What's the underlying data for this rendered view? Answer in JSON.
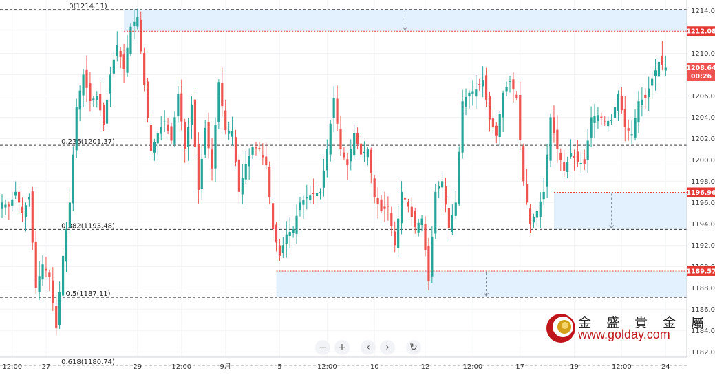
{
  "chart_data": {
    "type": "candlestick",
    "y_axis": {
      "range": [
        1181.5,
        1215.0
      ],
      "ticks": [
        "1182.00",
        "1184.00",
        "1186.00",
        "1188.00",
        "1190.00",
        "1192.00",
        "1194.00",
        "1196.00",
        "1198.00",
        "1200.00",
        "1202.00",
        "1204.00",
        "1206.00",
        "1208.00",
        "1210.00",
        "1212.00",
        "1214.00"
      ]
    },
    "x_axis": {
      "ticks": [
        {
          "label": "12:00",
          "bar": 3
        },
        {
          "label": "27",
          "bar": 13
        },
        {
          "label": "29",
          "bar": 40
        },
        {
          "label": "12:00",
          "bar": 53
        },
        {
          "label": "9月",
          "bar": 66
        },
        {
          "label": "5",
          "bar": 82
        },
        {
          "label": "12:00",
          "bar": 96
        },
        {
          "label": "10",
          "bar": 110
        },
        {
          "label": "12",
          "bar": 125
        },
        {
          "label": "12:00",
          "bar": 139
        },
        {
          "label": "17",
          "bar": 153
        },
        {
          "label": "19",
          "bar": 169
        },
        {
          "label": "12:00",
          "bar": 183
        },
        {
          "label": "24",
          "bar": 196
        }
      ]
    },
    "fib_levels": [
      {
        "label": "0(1214.11)",
        "price": 1214.11
      },
      {
        "label": "0.236(1201.37)",
        "price": 1201.37
      },
      {
        "label": "0.382(1193.48)",
        "price": 1193.48
      },
      {
        "label": "0.5(1187.11)",
        "price": 1187.11
      },
      {
        "label": "0.618(1180.74)",
        "price": 1180.74
      }
    ],
    "price_tags": [
      {
        "text": "1212.08",
        "price": 1212.08,
        "color": "#e53935"
      },
      {
        "text": "1196.96",
        "price": 1196.96,
        "color": "#e53935"
      },
      {
        "text": "1189.57",
        "price": 1189.57,
        "color": "#e53935"
      }
    ],
    "last_price": {
      "price": 1208.64,
      "text": "1208.64",
      "countdown": "00:26",
      "color": "#ef5350"
    },
    "zones": [
      {
        "from_bar": 36,
        "to_bar": 205,
        "top": 1214.11,
        "bottom": 1212.08
      },
      {
        "from_bar": 163,
        "to_bar": 205,
        "top": 1196.96,
        "bottom": 1193.48
      },
      {
        "from_bar": 81,
        "to_bar": 205,
        "top": 1189.57,
        "bottom": 1187.11
      }
    ],
    "up_color": "#26a69a",
    "down_color": "#ef5350",
    "close_path": [
      [
        0,
        1196
      ],
      [
        2,
        1195.6
      ],
      [
        4,
        1197
      ],
      [
        6,
        1195
      ],
      [
        8,
        1196.5
      ],
      [
        10,
        1188
      ],
      [
        12,
        1190.2
      ],
      [
        14,
        1189
      ],
      [
        16,
        1184.2
      ],
      [
        18,
        1191
      ],
      [
        20,
        1196
      ],
      [
        22,
        1205
      ],
      [
        24,
        1208
      ],
      [
        26,
        1205.5
      ],
      [
        28,
        1206
      ],
      [
        30,
        1203.3
      ],
      [
        32,
        1208
      ],
      [
        34,
        1210.8
      ],
      [
        36,
        1208.5
      ],
      [
        38,
        1212.5
      ],
      [
        40,
        1213.4
      ],
      [
        42,
        1207
      ],
      [
        44,
        1200.8
      ],
      [
        46,
        1202.5
      ],
      [
        48,
        1203.6
      ],
      [
        50,
        1201.8
      ],
      [
        52,
        1206.2
      ],
      [
        54,
        1201
      ],
      [
        56,
        1205.2
      ],
      [
        58,
        1197.2
      ],
      [
        60,
        1203
      ],
      [
        62,
        1199.2
      ],
      [
        64,
        1207.3
      ],
      [
        66,
        1202.8
      ],
      [
        68,
        1202.7
      ],
      [
        70,
        1197
      ],
      [
        72,
        1199.6
      ],
      [
        74,
        1201.2
      ],
      [
        76,
        1201
      ],
      [
        78,
        1199.5
      ],
      [
        80,
        1193.5
      ],
      [
        82,
        1191
      ],
      [
        84,
        1193
      ],
      [
        86,
        1193.5
      ],
      [
        88,
        1196
      ],
      [
        90,
        1196.5
      ],
      [
        92,
        1196.8
      ],
      [
        94,
        1197
      ],
      [
        96,
        1201
      ],
      [
        98,
        1205.8
      ],
      [
        100,
        1201
      ],
      [
        102,
        1199.5
      ],
      [
        104,
        1202.5
      ],
      [
        106,
        1200.5
      ],
      [
        108,
        1201
      ],
      [
        110,
        1196.5
      ],
      [
        112,
        1195.2
      ],
      [
        114,
        1195.6
      ],
      [
        116,
        1192
      ],
      [
        118,
        1197
      ],
      [
        120,
        1195.6
      ],
      [
        122,
        1193.7
      ],
      [
        124,
        1194.5
      ],
      [
        126,
        1188.6
      ],
      [
        128,
        1197
      ],
      [
        130,
        1198
      ],
      [
        132,
        1193.6
      ],
      [
        134,
        1196
      ],
      [
        136,
        1205.5
      ],
      [
        138,
        1206.3
      ],
      [
        140,
        1206.6
      ],
      [
        142,
        1207.5
      ],
      [
        144,
        1203.8
      ],
      [
        146,
        1202.3
      ],
      [
        148,
        1206.3
      ],
      [
        150,
        1207.4
      ],
      [
        152,
        1205.8
      ],
      [
        154,
        1198
      ],
      [
        156,
        1194
      ],
      [
        158,
        1195.2
      ],
      [
        160,
        1197
      ],
      [
        162,
        1204
      ],
      [
        164,
        1201
      ],
      [
        166,
        1199
      ],
      [
        168,
        1200.6
      ],
      [
        170,
        1199.8
      ],
      [
        172,
        1199.6
      ],
      [
        174,
        1204
      ],
      [
        176,
        1204.2
      ],
      [
        178,
        1203.6
      ],
      [
        180,
        1203.7
      ],
      [
        182,
        1206.2
      ],
      [
        184,
        1203.1
      ],
      [
        186,
        1202.4
      ],
      [
        188,
        1205.5
      ],
      [
        190,
        1205.8
      ],
      [
        192,
        1207.6
      ],
      [
        194,
        1209.2
      ],
      [
        196,
        1208.64
      ]
    ]
  },
  "controls": {
    "zoom_out": "−",
    "zoom_in": "+",
    "scroll_left": "‹",
    "scroll_right": "›",
    "reset": "↻"
  },
  "logo": {
    "name_cn": "金 盛 貴 金 屬",
    "url": "www.golday.com"
  }
}
